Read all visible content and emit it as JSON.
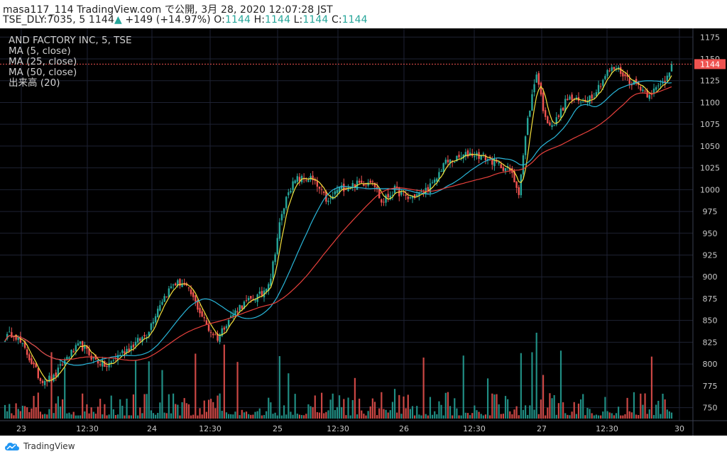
{
  "header": {
    "line1": "masa117_114 TradingView.com で公開, 3月 28, 2020 12:07:28 JST",
    "symbol": "TSE_DLY:7035, 5",
    "last": "1144",
    "arrow": "▲",
    "change": "+149 (+14.97%)",
    "o_label": "O:",
    "o_val": "1144",
    "h_label": "H:",
    "h_val": "1144",
    "l_label": "L:",
    "l_val": "1144",
    "c_label": "C:",
    "c_val": "1144"
  },
  "legend": {
    "title": "AND FACTORY INC, 5, TSE",
    "ma5": "MA (5, close)",
    "ma25": "MA (25, close)",
    "ma50": "MA (50, close)",
    "volume": "出来高 (20)"
  },
  "footer": {
    "brand": "TradingView"
  },
  "colors": {
    "background": "#000000",
    "grid": "#1e2233",
    "up": "#26a69a",
    "down": "#ef5350",
    "ma5": "#f5e13d",
    "ma25": "#29b6d9",
    "ma50": "#e8413c",
    "text": "#c8c8c8",
    "price_label_bg": "#ef5350"
  },
  "chart_data": {
    "type": "candlestick",
    "title": "AND FACTORY INC, 5, TSE",
    "price_ticks": [
      750,
      775,
      800,
      825,
      850,
      875,
      900,
      925,
      950,
      975,
      1000,
      1025,
      1050,
      1075,
      1100,
      1125,
      1150,
      1175
    ],
    "ylim": [
      735,
      1185
    ],
    "current_price": 1144,
    "x_labels": [
      "23",
      "12:30",
      "24",
      "12:30",
      "25",
      "12:30",
      "26",
      "12:30",
      "27",
      "12:30",
      "30"
    ],
    "close_anchors": [
      [
        0,
        830
      ],
      [
        4,
        836
      ],
      [
        10,
        812
      ],
      [
        16,
        782
      ],
      [
        22,
        784
      ],
      [
        28,
        808
      ],
      [
        34,
        822
      ],
      [
        40,
        806
      ],
      [
        46,
        797
      ],
      [
        52,
        812
      ],
      [
        58,
        822
      ],
      [
        64,
        834
      ],
      [
        70,
        870
      ],
      [
        76,
        892
      ],
      [
        80,
        893
      ],
      [
        84,
        880
      ],
      [
        88,
        860
      ],
      [
        92,
        840
      ],
      [
        96,
        830
      ],
      [
        100,
        848
      ],
      [
        106,
        866
      ],
      [
        112,
        875
      ],
      [
        116,
        880
      ],
      [
        120,
        900
      ],
      [
        124,
        960
      ],
      [
        128,
        1000
      ],
      [
        132,
        1012
      ],
      [
        138,
        1013
      ],
      [
        142,
        1000
      ],
      [
        146,
        985
      ],
      [
        150,
        1000
      ],
      [
        156,
        1005
      ],
      [
        162,
        1008
      ],
      [
        166,
        1012
      ],
      [
        170,
        985
      ],
      [
        176,
        1000
      ],
      [
        182,
        990
      ],
      [
        188,
        996
      ],
      [
        194,
        1008
      ],
      [
        198,
        1030
      ],
      [
        204,
        1035
      ],
      [
        210,
        1042
      ],
      [
        216,
        1038
      ],
      [
        222,
        1030
      ],
      [
        228,
        1022
      ],
      [
        232,
        998
      ],
      [
        236,
        1080
      ],
      [
        240,
        1135
      ],
      [
        244,
        1080
      ],
      [
        248,
        1075
      ],
      [
        254,
        1105
      ],
      [
        260,
        1100
      ],
      [
        266,
        1110
      ],
      [
        272,
        1135
      ],
      [
        276,
        1140
      ],
      [
        282,
        1125
      ],
      [
        286,
        1120
      ],
      [
        290,
        1110
      ],
      [
        294,
        1115
      ],
      [
        298,
        1125
      ],
      [
        301,
        1144
      ]
    ],
    "ma50_start": 868
  }
}
